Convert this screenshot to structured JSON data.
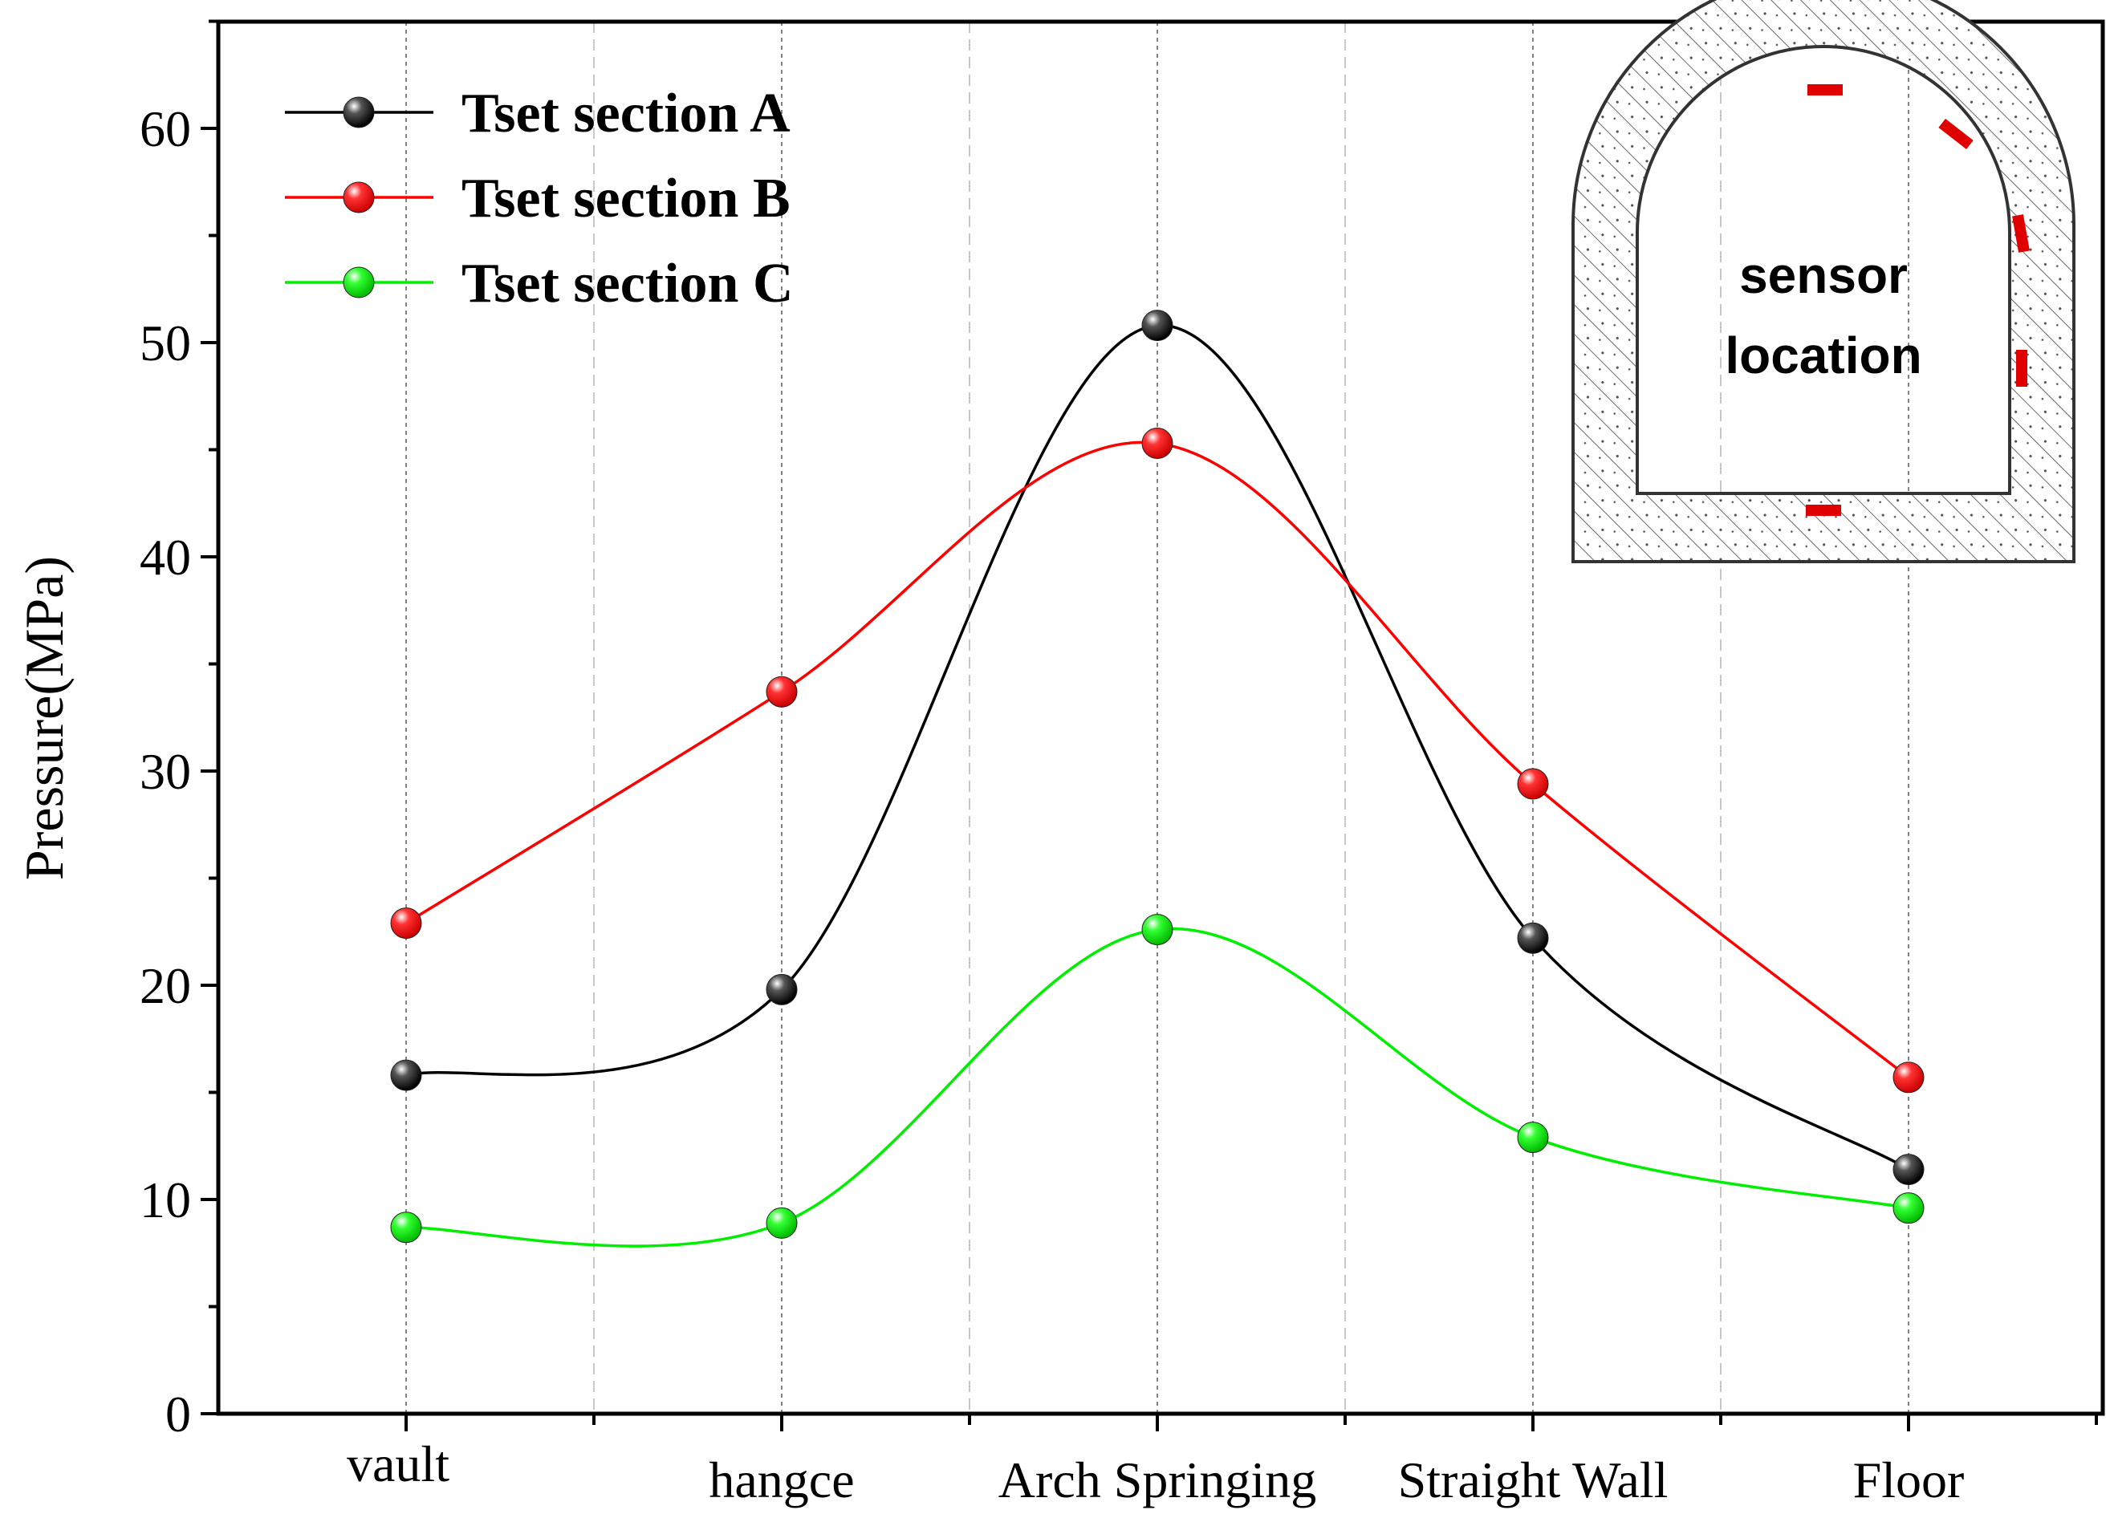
{
  "chart_data": {
    "type": "line",
    "title": "",
    "xlabel": "",
    "ylabel": "Pressure(MPa)",
    "categories": [
      "vault",
      "hangce",
      "Arch Springing",
      "Straight Wall",
      "Floor"
    ],
    "ylim": [
      0,
      65
    ],
    "yticks": [
      0,
      10,
      20,
      30,
      40,
      50,
      60
    ],
    "grid": "vertical dashed lines at categories and midpoints",
    "legend_position": "top-left",
    "series": [
      {
        "name": "Tset section A",
        "color": "#000000",
        "values": [
          15.8,
          19.8,
          50.8,
          22.2,
          11.4
        ]
      },
      {
        "name": "Tset section B",
        "color": "#ff0000",
        "values": [
          22.9,
          33.7,
          45.3,
          29.4,
          15.7
        ]
      },
      {
        "name": "Tset section C",
        "color": "#00ee00",
        "values": [
          8.7,
          8.9,
          22.6,
          12.9,
          9.6
        ]
      }
    ],
    "inset": {
      "label_line1": "sensor",
      "label_line2": "location",
      "sensor_color": "#e00000"
    }
  }
}
